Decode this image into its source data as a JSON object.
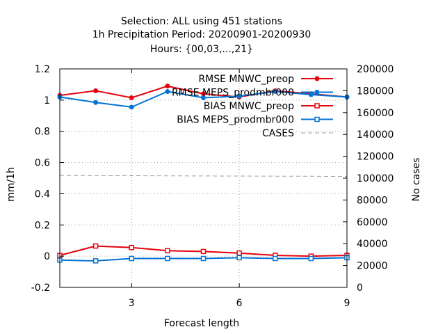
{
  "chart_data": {
    "type": "line",
    "title_lines": [
      "Selection: ALL using   451 stations",
      "1h Precipitation   Period: 20200901-20200930",
      "Hours: {00,03,...,21}"
    ],
    "xlabel": "Forecast length",
    "ylabel": "mm/1h",
    "y2label": "No cases",
    "xlim": [
      1,
      9
    ],
    "ylim": [
      -0.2,
      1.2
    ],
    "y2lim": [
      0,
      200000
    ],
    "x_ticks": [
      3,
      6,
      9
    ],
    "y_ticks": [
      -0.2,
      0,
      0.2,
      0.4,
      0.6,
      0.8,
      1,
      1.2
    ],
    "y_tick_labels": [
      "-0.2",
      "0",
      "0.2",
      "0.4",
      "0.6",
      "0.8",
      "1",
      "1.2"
    ],
    "y2_ticks": [
      0,
      20000,
      40000,
      60000,
      80000,
      100000,
      120000,
      140000,
      160000,
      180000,
      200000
    ],
    "grid": true,
    "legend_position": "top-right",
    "x": [
      1,
      2,
      3,
      4,
      5,
      6,
      7,
      8,
      9
    ],
    "series": [
      {
        "name": "RMSE MNWC_preop",
        "axis": "y1",
        "color": "#e8000b",
        "marker": "star",
        "values": [
          1.03,
          1.06,
          1.015,
          1.09,
          1.04,
          1.02,
          1.06,
          1.04,
          1.02
        ]
      },
      {
        "name": "RMSE MEPS_prodmbr000",
        "axis": "y1",
        "color": "#0072d6",
        "marker": "star",
        "values": [
          1.02,
          0.985,
          0.955,
          1.055,
          1.015,
          1.025,
          1.055,
          1.035,
          1.02
        ]
      },
      {
        "name": "BIAS MNWC_preop",
        "axis": "y1",
        "color": "#e8000b",
        "marker": "square",
        "values": [
          0.005,
          0.065,
          0.055,
          0.035,
          0.03,
          0.02,
          0.005,
          0.0,
          0.005
        ]
      },
      {
        "name": "BIAS MEPS_prodmbr000",
        "axis": "y1",
        "color": "#0072d6",
        "marker": "square",
        "values": [
          -0.025,
          -0.03,
          -0.015,
          -0.015,
          -0.015,
          -0.01,
          -0.015,
          -0.015,
          -0.01
        ]
      },
      {
        "name": "CASES",
        "axis": "y2",
        "color": "#a0a0a0",
        "marker": "none",
        "dash": true,
        "values": [
          102500,
          102300,
          102200,
          102100,
          102000,
          101900,
          101800,
          101700,
          101500
        ]
      }
    ]
  }
}
